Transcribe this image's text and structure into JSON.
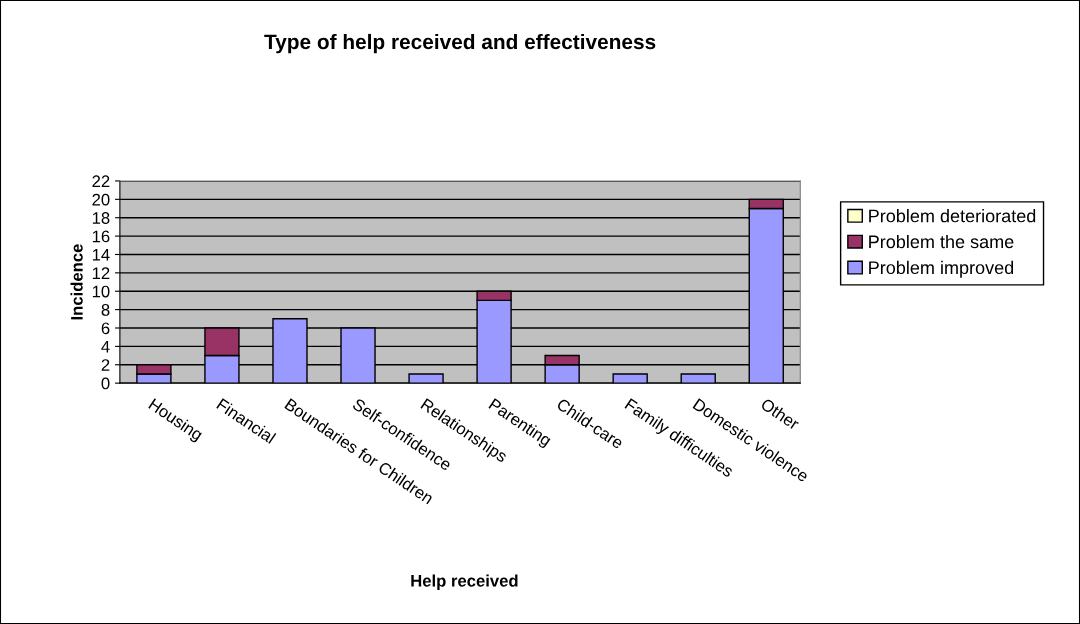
{
  "chart_data": {
    "type": "bar",
    "title": "Type of help received and effectiveness",
    "xlabel": "Help received",
    "ylabel": "Incidence",
    "categories": [
      "Housing",
      "Financial",
      "Boundaries for Children",
      "Self-confidence",
      "Relationships",
      "Parenting",
      "Child-care",
      "Family difficulties",
      "Domestic violence",
      "Other"
    ],
    "stacked": true,
    "series": [
      {
        "name": "Problem improved",
        "color": "#9999ff",
        "values": [
          1,
          3,
          7,
          6,
          1,
          9,
          2,
          1,
          1,
          19
        ]
      },
      {
        "name": "Problem the same",
        "color": "#993366",
        "values": [
          1,
          3,
          0,
          0,
          0,
          1,
          1,
          0,
          0,
          1
        ]
      },
      {
        "name": "Problem deteriorated",
        "color": "#ffffcc",
        "values": [
          0,
          0,
          0,
          0,
          0,
          0,
          0,
          0,
          0,
          0
        ]
      }
    ],
    "ylim": [
      0,
      22
    ],
    "yticks": [
      0,
      2,
      4,
      6,
      8,
      10,
      12,
      14,
      16,
      18,
      20,
      22
    ],
    "grid": "y",
    "legend": "right"
  }
}
